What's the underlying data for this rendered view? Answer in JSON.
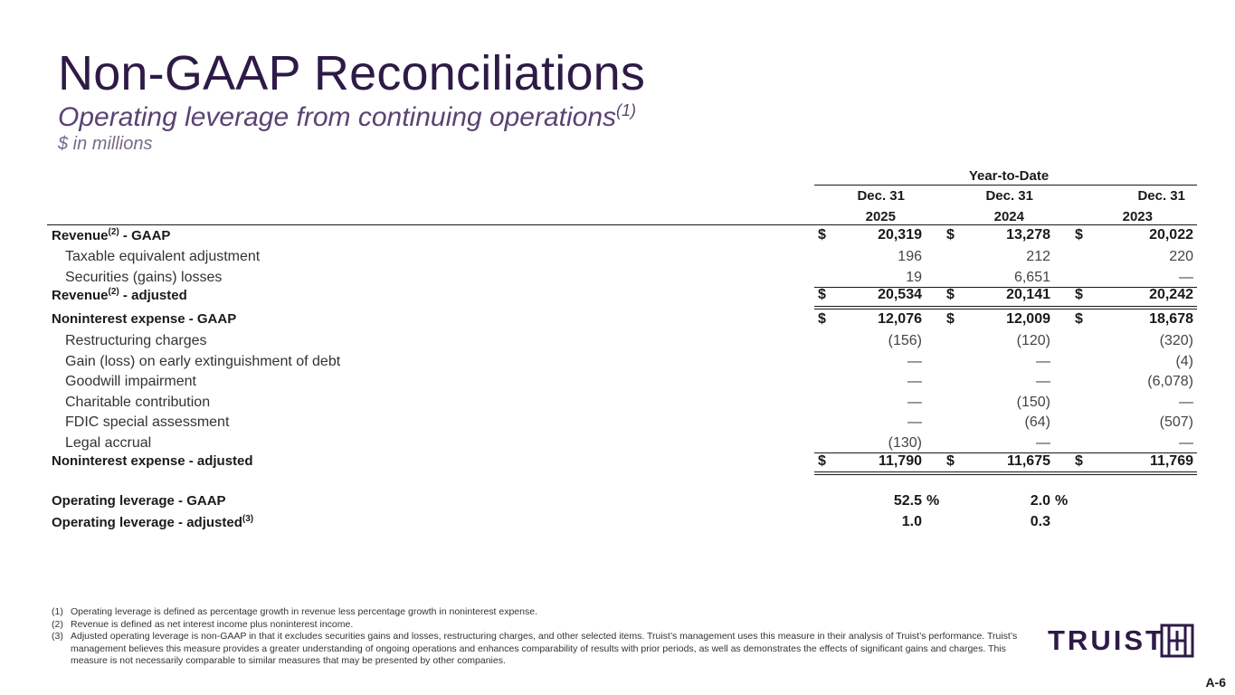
{
  "title": "Non-GAAP Reconciliations",
  "subtitle": "Operating leverage from continuing operations",
  "subtitle_sup": "(1)",
  "units": "$ in millions",
  "table": {
    "group_header": "Year-to-Date",
    "columns": [
      {
        "line1": "Dec. 31",
        "line2": "2025"
      },
      {
        "line1": "Dec. 31",
        "line2": "2024"
      },
      {
        "line1": "Dec. 31",
        "line2": "2023"
      }
    ],
    "rows": [
      {
        "label": "Revenue",
        "sup": "(2)",
        "suffix": " - GAAP",
        "values": [
          "20,319",
          "13,278",
          "20,022"
        ],
        "dollar": true
      },
      {
        "label": "Taxable equivalent adjustment",
        "values": [
          "196",
          "212",
          "220"
        ]
      },
      {
        "label": "Securities (gains) losses",
        "values": [
          "19",
          "6,651",
          "—"
        ]
      },
      {
        "label": "Revenue",
        "sup": "(2)",
        "suffix": " - adjusted",
        "values": [
          "20,534",
          "20,141",
          "20,242"
        ],
        "dollar": true
      },
      {
        "label": "Noninterest expense - GAAP",
        "values": [
          "12,076",
          "12,009",
          "18,678"
        ],
        "dollar": true
      },
      {
        "label": "Restructuring charges",
        "values": [
          "(156)",
          "(120)",
          "(320)"
        ]
      },
      {
        "label": "Gain (loss) on early extinguishment of debt",
        "values": [
          "—",
          "—",
          "(4)"
        ]
      },
      {
        "label": "Goodwill impairment",
        "values": [
          "—",
          "—",
          "(6,078)"
        ]
      },
      {
        "label": "Charitable contribution",
        "values": [
          "—",
          "(150)",
          "—"
        ]
      },
      {
        "label": "FDIC special assessment",
        "values": [
          "—",
          "(64)",
          "(507)"
        ]
      },
      {
        "label": "Legal accrual",
        "values": [
          "(130)",
          "—",
          "—"
        ]
      },
      {
        "label": "Noninterest expense - adjusted",
        "values": [
          "11,790",
          "11,675",
          "11,769"
        ],
        "dollar": true
      },
      {
        "label": "Operating leverage - GAAP",
        "values": [
          "52.5",
          "2.0"
        ],
        "pct": true
      },
      {
        "label": "Operating leverage - adjusted",
        "sup": "(3)",
        "suffix": "",
        "values": [
          "1.0",
          "0.3"
        ]
      }
    ],
    "dollar_sign": "$",
    "percent_sign": "%"
  },
  "footnotes": [
    {
      "key": "(1)",
      "text": "Operating leverage is defined as percentage growth in revenue less percentage growth in noninterest expense."
    },
    {
      "key": "(2)",
      "text": "Revenue is defined as net interest income plus noninterest income."
    },
    {
      "key": "(3)",
      "text": "Adjusted operating leverage is non-GAAP in that it excludes securities gains and losses, restructuring charges, and other selected items. Truist’s management uses this measure in their analysis of Truist’s performance. Truist’s management believes this measure provides a greater understanding of ongoing operations and enhances comparability of results with prior periods, as well as demonstrates the effects of significant gains and charges. This measure is not necessarily comparable to similar measures that may be presented by other companies."
    }
  ],
  "logo": {
    "text": "TRUIST",
    "mark_icon": "truist-hh-mark-icon",
    "color": "#2e1a47"
  },
  "page_number": "A-6"
}
